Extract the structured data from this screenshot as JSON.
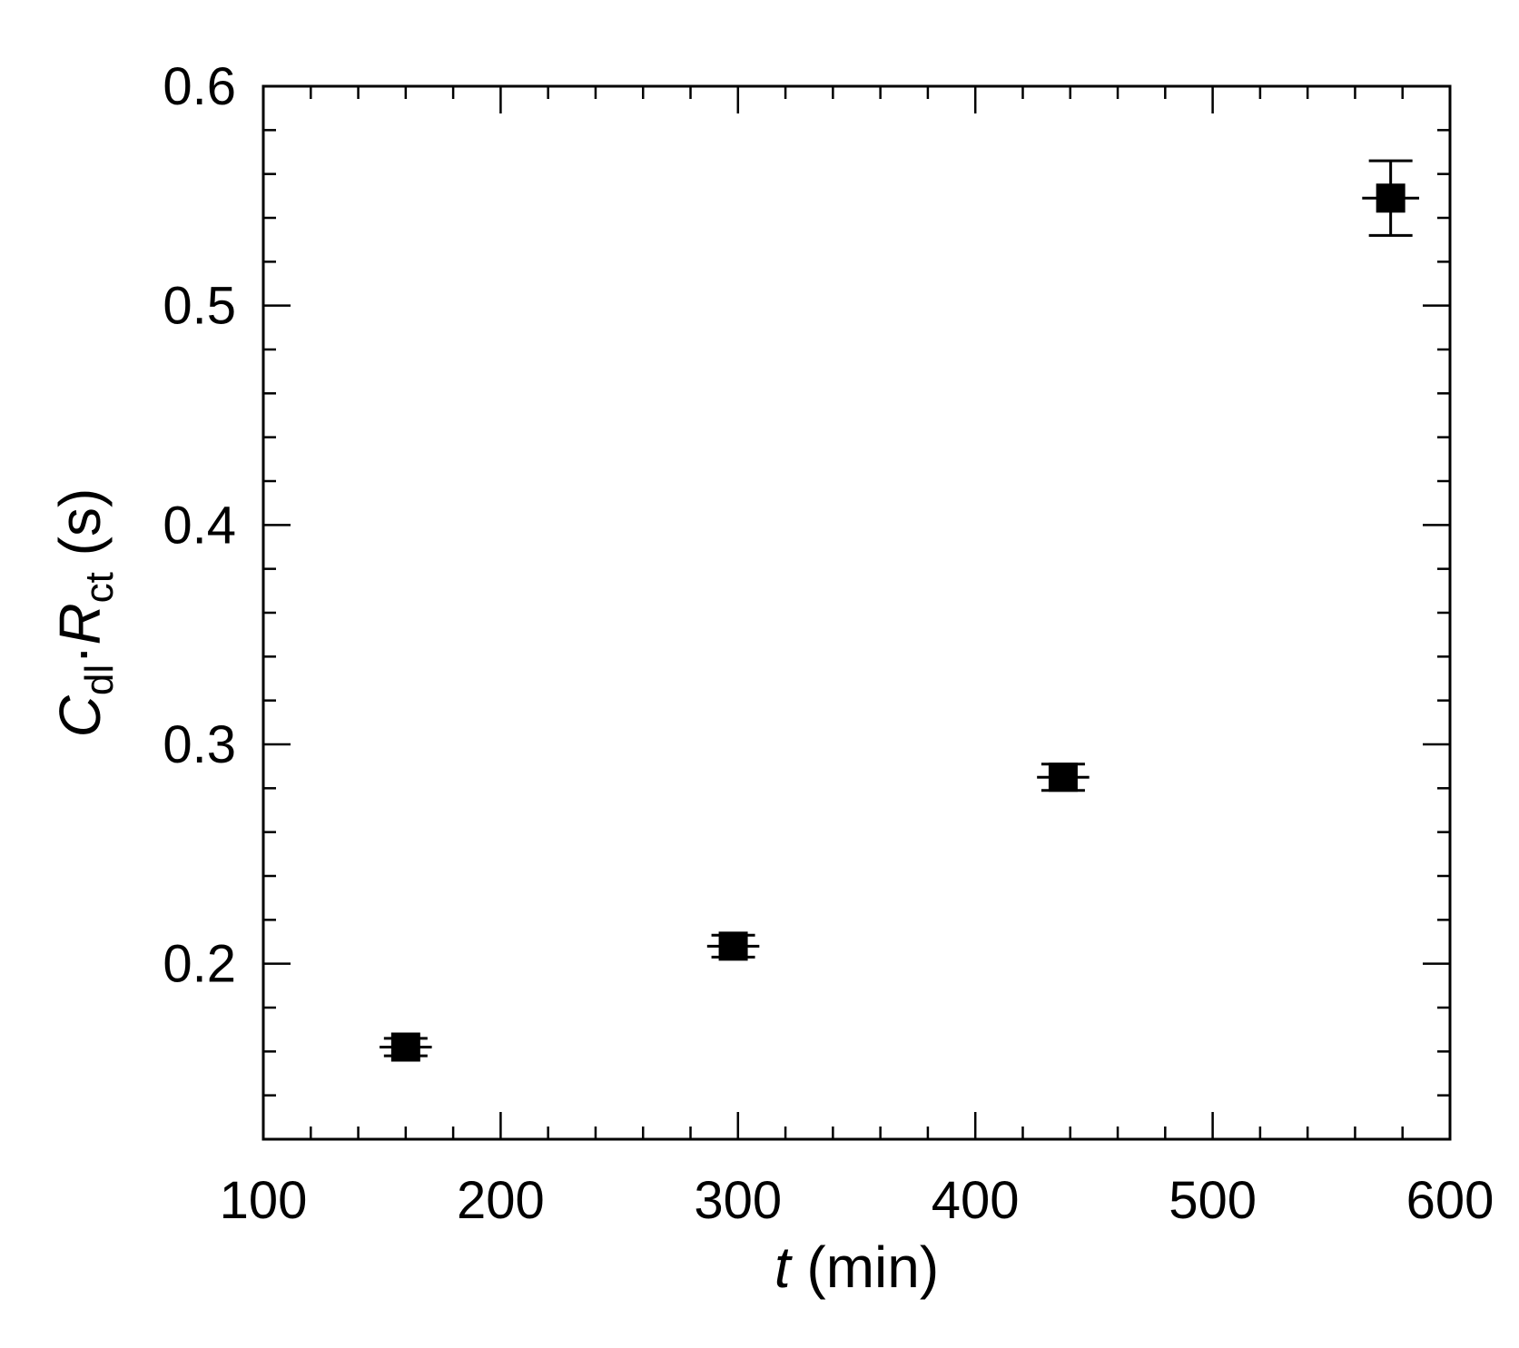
{
  "chart_data": {
    "type": "scatter",
    "xlabel": {
      "var": "t",
      "unit": " (min)"
    },
    "ylabel": {
      "var1": "C",
      "sub1": "dl",
      "dot": "·",
      "var2": "R",
      "sub2": "ct",
      "unit": " (s)"
    },
    "xlim": [
      100,
      600
    ],
    "ylim": [
      0.12,
      0.6
    ],
    "x_ticks": [
      100,
      200,
      300,
      400,
      500,
      600
    ],
    "x_tick_labels": [
      "100",
      "200",
      "300",
      "400",
      "500",
      "600"
    ],
    "y_ticks": [
      0.2,
      0.3,
      0.4,
      0.5,
      0.6
    ],
    "y_tick_labels": [
      "0.2",
      "0.3",
      "0.4",
      "0.5",
      "0.6"
    ],
    "x_minor_step": 20,
    "y_minor_step": 0.02,
    "grid": false,
    "legend": "none",
    "marker": "square",
    "color": "#000000",
    "series": [
      {
        "x": [
          160,
          298,
          437,
          575
        ],
        "y": [
          0.162,
          0.208,
          0.285,
          0.549
        ],
        "yerr": [
          0.004,
          0.005,
          0.006,
          0.017
        ],
        "xerr": [
          11,
          11,
          11,
          12
        ]
      }
    ]
  }
}
